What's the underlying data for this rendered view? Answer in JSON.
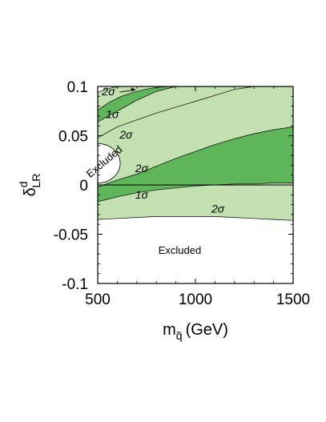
{
  "chart_data": {
    "type": "area",
    "title": "",
    "xlabel": {
      "main": "m",
      "sub": "q̃",
      "unit": "(GeV)"
    },
    "ylabel": {
      "main": "δ",
      "sup": "d",
      "sub": "LR"
    },
    "xlim": [
      500,
      1500
    ],
    "ylim": [
      -0.1,
      0.1
    ],
    "x_ticks": [
      "500",
      "1000",
      "1500"
    ],
    "y_ticks": [
      "-0.1",
      "-0.05",
      "0",
      "0.05",
      "0.1"
    ],
    "grid": false,
    "colors": {
      "one_sigma": "#5fb55a",
      "two_sigma": "#c2e0b0",
      "excluded": "#ffffff",
      "line": "#000000"
    },
    "regions": {
      "upper_two_sigma_lower": {
        "x": [
          500,
          600,
          700,
          800,
          900,
          1000,
          1100,
          1200,
          1300,
          1400,
          1500
        ],
        "y": [
          0.048,
          0.059,
          0.066,
          0.073,
          0.079,
          0.085,
          0.091,
          0.097,
          0.1,
          0.1,
          0.1
        ]
      },
      "upper_one_sigma_lower": {
        "x": [
          500,
          600,
          700,
          800,
          900,
          1000,
          1100,
          1200,
          1300,
          1400,
          1500
        ],
        "y": [
          0.064,
          0.075,
          0.086,
          0.095,
          0.1,
          0.1,
          0.1,
          0.1,
          0.1,
          0.1,
          0.1
        ]
      },
      "upper_one_sigma_upper": {
        "x": [
          500,
          560,
          620,
          680,
          740,
          800,
          860,
          900
        ],
        "y": [
          0.076,
          0.084,
          0.09,
          0.094,
          0.097,
          0.099,
          0.1,
          0.1
        ]
      },
      "upper_two_sigma_upper": {
        "x": [
          500,
          540,
          580,
          620
        ],
        "y": [
          0.094,
          0.097,
          0.099,
          0.1
        ]
      },
      "lower_two_sigma_upper": {
        "x": [
          500,
          600,
          700,
          800,
          900,
          1000,
          1100,
          1200,
          1300,
          1400,
          1500
        ],
        "y": [
          -0.001,
          0.007,
          0.013,
          0.021,
          0.029,
          0.036,
          0.043,
          0.049,
          0.054,
          0.058,
          0.061
        ]
      },
      "lower_one_sigma_upper": {
        "x": [
          500,
          600,
          700,
          800,
          900,
          1000,
          1100,
          1200,
          1300,
          1400,
          1500
        ],
        "y": [
          -0.002,
          0.005,
          0.011,
          0.019,
          0.027,
          0.034,
          0.041,
          0.047,
          0.052,
          0.056,
          0.059
        ]
      },
      "lower_one_sigma_lower": {
        "x": [
          500,
          600,
          700,
          800,
          900,
          1000,
          1100,
          1200,
          1300,
          1400,
          1500
        ],
        "y": [
          -0.017,
          -0.012,
          -0.008,
          -0.005,
          -0.003,
          -0.001,
          0.0,
          0.001,
          0.001,
          0.002,
          0.002
        ]
      },
      "lower_two_sigma_lower": {
        "x": [
          500,
          600,
          700,
          800,
          900,
          1000,
          1100,
          1200,
          1300,
          1400,
          1500
        ],
        "y": [
          -0.035,
          -0.034,
          -0.033,
          -0.032,
          -0.032,
          -0.032,
          -0.032,
          -0.033,
          -0.034,
          -0.035,
          -0.036
        ]
      },
      "excluded_ellipse": {
        "x_center": 500,
        "y_center": 0.022,
        "x_radius": 115,
        "y_radius": 0.02
      }
    },
    "reference_line": {
      "y": 0
    },
    "annotations": [
      {
        "text": "2σ",
        "x": 555,
        "y": 0.091,
        "arrow": true
      },
      {
        "text": "1σ",
        "x": 575,
        "y": 0.068
      },
      {
        "text": "2σ",
        "x": 645,
        "y": 0.047
      },
      {
        "text": "Excluded",
        "x": 545,
        "y": 0.021,
        "rotate": -40
      },
      {
        "text": "2σ",
        "x": 725,
        "y": 0.013
      },
      {
        "text": "1σ",
        "x": 725,
        "y": -0.014
      },
      {
        "text": "2σ",
        "x": 1115,
        "y": -0.028
      },
      {
        "text": "Excluded",
        "x": 920,
        "y": -0.07
      }
    ]
  }
}
